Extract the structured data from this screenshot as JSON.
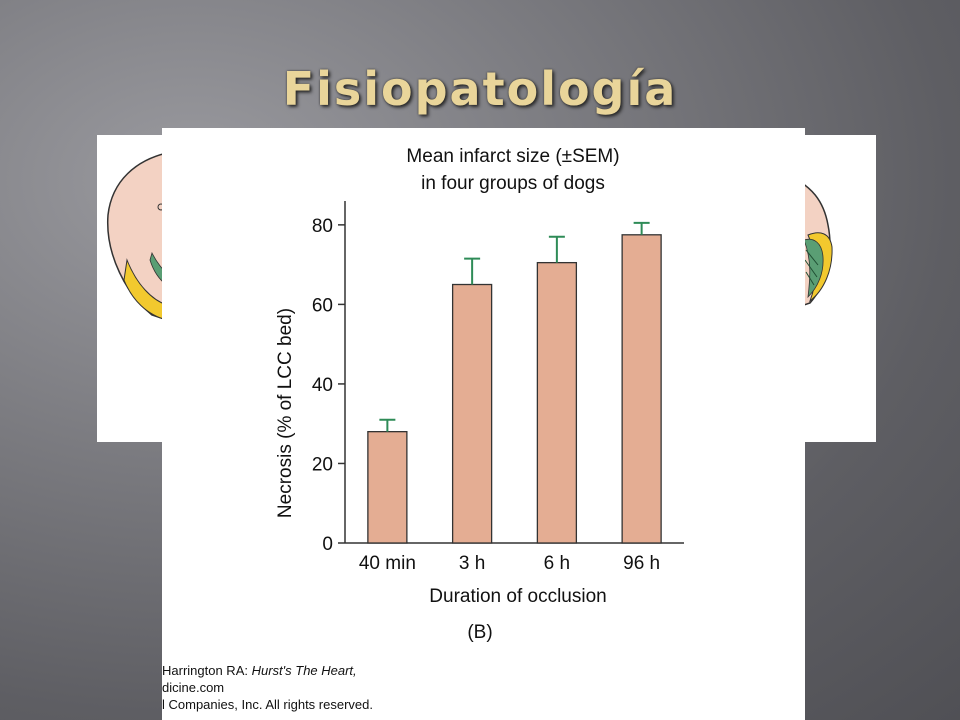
{
  "slide": {
    "title": "Fisiopatología",
    "colors": {
      "title": "#e9d59a",
      "bar_fill": "#e4ad93",
      "error_bar": "#2e8b57"
    }
  },
  "credits": {
    "line1_prefix": "Harrington RA: ",
    "line1_italic": "Hurst's The Heart,",
    "line2": "dicine.com",
    "line3": "l Companies, Inc. All rights reserved."
  },
  "chart_data": {
    "type": "bar",
    "title": "Mean infarct size (±SEM)",
    "subtitle": "in four groups of dogs",
    "xlabel": "Duration of occlusion",
    "ylabel": "Necrosis (% of LCC bed)",
    "panel_label": "(B)",
    "categories": [
      "40 min",
      "3 h",
      "6 h",
      "96 h"
    ],
    "values": [
      28,
      65,
      70.5,
      77.5
    ],
    "errors": [
      3,
      6.5,
      6.5,
      3
    ],
    "ylim": [
      0,
      86
    ],
    "yticks": [
      0,
      20,
      40,
      60,
      80
    ],
    "grid": false,
    "legend": "none"
  }
}
